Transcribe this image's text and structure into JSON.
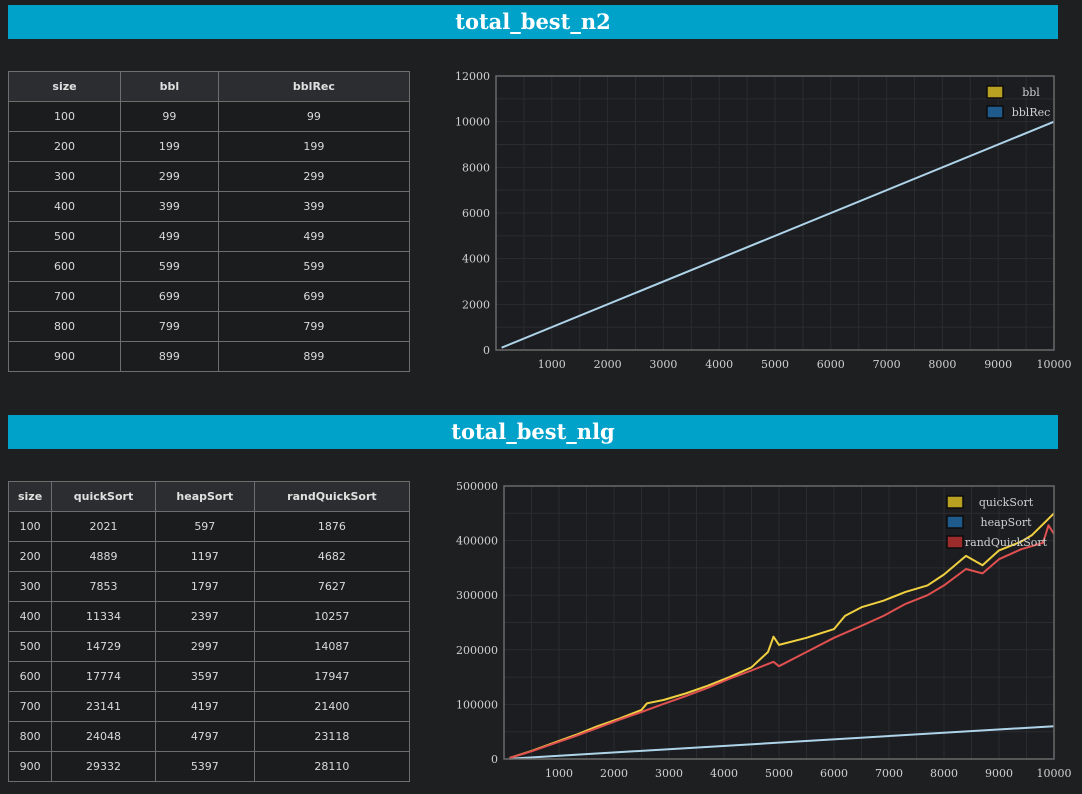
{
  "sections": [
    {
      "title": "total_best_n2",
      "table": {
        "columns": [
          "size",
          "bbl",
          "bblRec"
        ],
        "rows": [
          [
            "100",
            "99",
            "99"
          ],
          [
            "200",
            "199",
            "199"
          ],
          [
            "300",
            "299",
            "299"
          ],
          [
            "400",
            "399",
            "399"
          ],
          [
            "500",
            "499",
            "499"
          ],
          [
            "600",
            "599",
            "599"
          ],
          [
            "700",
            "699",
            "699"
          ],
          [
            "800",
            "799",
            "799"
          ],
          [
            "900",
            "899",
            "899"
          ]
        ]
      }
    },
    {
      "title": "total_best_nlg",
      "table": {
        "columns": [
          "size",
          "quickSort",
          "heapSort",
          "randQuickSort"
        ],
        "rows": [
          [
            "100",
            "2021",
            "597",
            "1876"
          ],
          [
            "200",
            "4889",
            "1197",
            "4682"
          ],
          [
            "300",
            "7853",
            "1797",
            "7627"
          ],
          [
            "400",
            "11334",
            "2397",
            "10257"
          ],
          [
            "500",
            "14729",
            "2997",
            "14087"
          ],
          [
            "600",
            "17774",
            "3597",
            "17947"
          ],
          [
            "700",
            "23141",
            "4197",
            "21400"
          ],
          [
            "800",
            "24048",
            "4797",
            "23118"
          ],
          [
            "900",
            "29332",
            "5397",
            "28110"
          ]
        ]
      }
    }
  ],
  "chart_data": [
    {
      "type": "line",
      "title": "",
      "xlabel": "",
      "ylabel": "",
      "xlim": [
        0,
        10000
      ],
      "ylim": [
        0,
        12000
      ],
      "xticks": [
        1000,
        2000,
        3000,
        4000,
        5000,
        6000,
        7000,
        8000,
        9000,
        10000
      ],
      "yticks": [
        0,
        2000,
        4000,
        6000,
        8000,
        10000,
        12000
      ],
      "grid": true,
      "legend": "top-right",
      "series": [
        {
          "name": "bbl",
          "color": "#b8a020",
          "line_color": "#1a1a1a",
          "points": [
            [
              100,
              99
            ],
            [
              10000,
              9999
            ]
          ]
        },
        {
          "name": "bblRec",
          "color": "#1e5a8c",
          "line_color": "#aed4ea",
          "points": [
            [
              100,
              99
            ],
            [
              10000,
              9999
            ]
          ]
        }
      ]
    },
    {
      "type": "line",
      "title": "",
      "xlabel": "",
      "ylabel": "",
      "xlim": [
        0,
        10000
      ],
      "ylim": [
        0,
        500000
      ],
      "xticks": [
        1000,
        2000,
        3000,
        4000,
        5000,
        6000,
        7000,
        8000,
        9000,
        10000
      ],
      "yticks": [
        0,
        100000,
        200000,
        300000,
        400000,
        500000
      ],
      "grid": true,
      "legend": "top-right",
      "series": [
        {
          "name": "quickSort",
          "color": "#b8a020",
          "line_color": "#f0d040",
          "points": [
            [
              100,
              2021
            ],
            [
              500,
              14729
            ],
            [
              900,
              29332
            ],
            [
              1300,
              44000
            ],
            [
              1700,
              60000
            ],
            [
              2100,
              74000
            ],
            [
              2500,
              90000
            ],
            [
              2600,
              102000
            ],
            [
              2900,
              108000
            ],
            [
              3300,
              120000
            ],
            [
              3700,
              134000
            ],
            [
              4100,
              150000
            ],
            [
              4500,
              168000
            ],
            [
              4800,
              196000
            ],
            [
              4900,
              224000
            ],
            [
              5000,
              209000
            ],
            [
              5500,
              222000
            ],
            [
              6000,
              238000
            ],
            [
              6200,
              262000
            ],
            [
              6500,
              278000
            ],
            [
              6900,
              290000
            ],
            [
              7300,
              306000
            ],
            [
              7700,
              318000
            ],
            [
              8000,
              338000
            ],
            [
              8400,
              372000
            ],
            [
              8700,
              355000
            ],
            [
              9000,
              382000
            ],
            [
              9400,
              398000
            ],
            [
              9600,
              410000
            ],
            [
              9800,
              430000
            ],
            [
              10000,
              450000
            ]
          ]
        },
        {
          "name": "heapSort",
          "color": "#1e5a8c",
          "line_color": "#aed4ea",
          "points": [
            [
              100,
              597
            ],
            [
              10000,
              59997
            ]
          ]
        },
        {
          "name": "randQuickSort",
          "color": "#9c2b2b",
          "line_color": "#e05050",
          "points": [
            [
              100,
              1876
            ],
            [
              500,
              14087
            ],
            [
              900,
              28110
            ],
            [
              1300,
              42000
            ],
            [
              1700,
              57000
            ],
            [
              2100,
              72000
            ],
            [
              2500,
              86000
            ],
            [
              2900,
              101000
            ],
            [
              3300,
              115000
            ],
            [
              3700,
              130000
            ],
            [
              4100,
              147000
            ],
            [
              4500,
              162000
            ],
            [
              4900,
              178000
            ],
            [
              5000,
              170000
            ],
            [
              5500,
              196000
            ],
            [
              6000,
              222000
            ],
            [
              6500,
              244000
            ],
            [
              6900,
              262000
            ],
            [
              7300,
              284000
            ],
            [
              7700,
              300000
            ],
            [
              8000,
              318000
            ],
            [
              8400,
              348000
            ],
            [
              8700,
              340000
            ],
            [
              9000,
              366000
            ],
            [
              9400,
              384000
            ],
            [
              9800,
              396000
            ],
            [
              9900,
              428000
            ],
            [
              10000,
              412000
            ]
          ]
        }
      ]
    }
  ]
}
